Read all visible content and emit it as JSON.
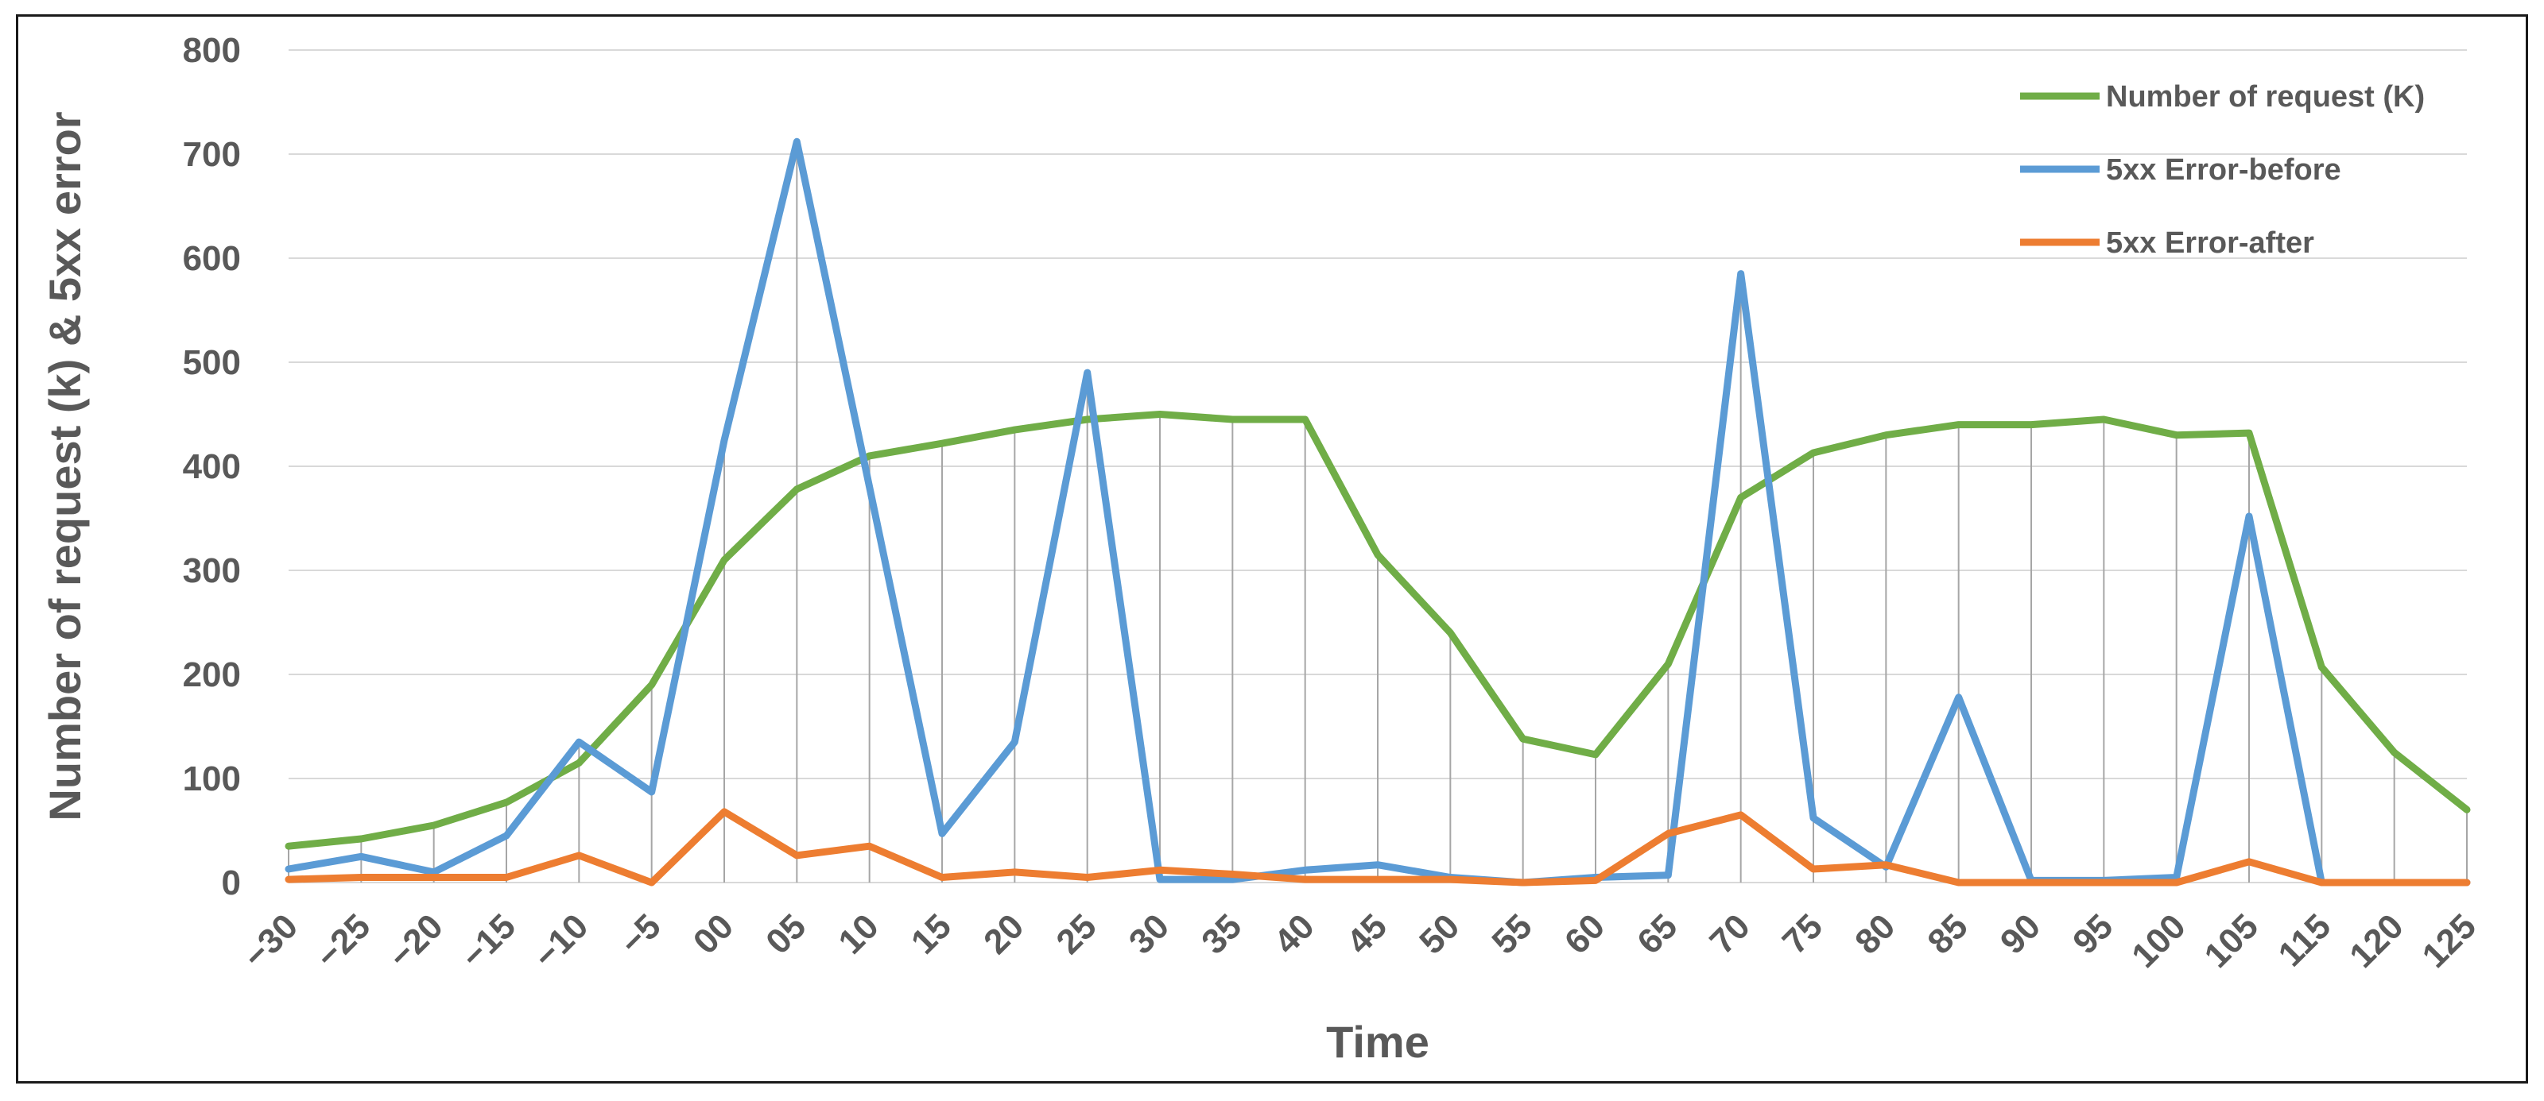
{
  "chart_data": {
    "type": "line",
    "xlabel": "Time",
    "ylabel": "Number of request (k) & 5xx error",
    "ylim": [
      0,
      800
    ],
    "yticks": [
      0,
      100,
      200,
      300,
      400,
      500,
      600,
      700,
      800
    ],
    "grid": "horizontal and vertical",
    "legend_position": "top-right",
    "categories": [
      "−30",
      "−25",
      "−20",
      "−15",
      "−10",
      "−5",
      "00",
      "05",
      "10",
      "15",
      "20",
      "25",
      "30",
      "35",
      "40",
      "45",
      "50",
      "55",
      "60",
      "65",
      "70",
      "75",
      "80",
      "85",
      "90",
      "95",
      "100",
      "105",
      "115",
      "120",
      "125"
    ],
    "series": [
      {
        "name": "Number of request (K)",
        "color": "#70ad47",
        "values": [
          35,
          42,
          55,
          77,
          115,
          190,
          310,
          378,
          410,
          422,
          435,
          445,
          450,
          445,
          445,
          315,
          240,
          138,
          123,
          210,
          370,
          413,
          430,
          440,
          440,
          445,
          430,
          432,
          207,
          125,
          70
        ]
      },
      {
        "name": "5xx Error-before",
        "color": "#5b9bd5",
        "values": [
          13,
          25,
          10,
          45,
          135,
          87,
          425,
          712,
          380,
          47,
          135,
          490,
          3,
          3,
          12,
          17,
          5,
          0,
          5,
          7,
          585,
          62,
          15,
          178,
          2,
          2,
          5,
          352,
          0,
          0,
          0
        ]
      },
      {
        "name": "5xx Error-after",
        "color": "#ed7d31",
        "values": [
          3,
          5,
          5,
          5,
          26,
          0,
          68,
          26,
          35,
          5,
          10,
          5,
          12,
          8,
          3,
          3,
          3,
          0,
          2,
          47,
          65,
          13,
          17,
          0,
          0,
          0,
          0,
          20,
          0,
          0,
          0
        ]
      }
    ]
  }
}
